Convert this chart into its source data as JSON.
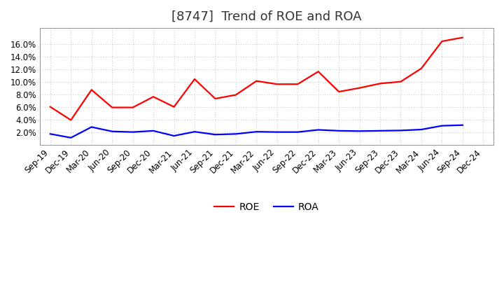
{
  "title": "[8747]  Trend of ROE and ROA",
  "x_labels": [
    "Sep-19",
    "Dec-19",
    "Mar-20",
    "Jun-20",
    "Sep-20",
    "Dec-20",
    "Mar-21",
    "Jun-21",
    "Sep-21",
    "Dec-21",
    "Mar-22",
    "Jun-22",
    "Sep-22",
    "Dec-22",
    "Mar-23",
    "Jun-23",
    "Sep-23",
    "Dec-23",
    "Mar-24",
    "Jun-24",
    "Sep-24",
    "Dec-24"
  ],
  "roe": [
    6.0,
    3.9,
    8.7,
    5.9,
    5.9,
    7.6,
    6.0,
    10.4,
    7.3,
    7.9,
    10.1,
    9.6,
    9.6,
    11.6,
    8.4,
    9.0,
    9.7,
    10.0,
    12.1,
    16.4,
    17.0,
    null
  ],
  "roa": [
    1.7,
    1.1,
    2.8,
    2.1,
    2.0,
    2.2,
    1.4,
    2.05,
    1.6,
    1.7,
    2.05,
    2.0,
    2.0,
    2.35,
    2.2,
    2.15,
    2.2,
    2.25,
    2.4,
    3.0,
    3.1,
    null
  ],
  "roe_color": "#ff0000",
  "roa_color": "#0000ff",
  "ylim_min": 0,
  "ylim_max": 18.5,
  "yticks": [
    2,
    4,
    6,
    8,
    10,
    12,
    14,
    16
  ],
  "background_color": "#ffffff",
  "plot_bg_color": "#ffffff",
  "grid_color": "#aaaaaa",
  "title_fontsize": 13,
  "legend_fontsize": 10,
  "tick_fontsize": 8.5
}
